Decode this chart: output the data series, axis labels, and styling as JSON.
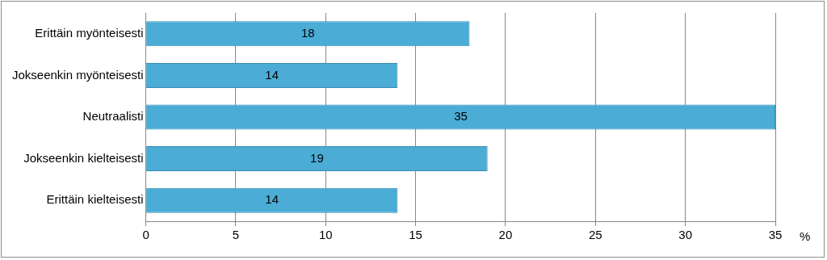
{
  "chart_data": {
    "type": "bar",
    "orientation": "horizontal",
    "categories": [
      "Erittäin myönteisesti",
      "Jokseenkin myönteisesti",
      "Neutraalisti",
      "Jokseenkin kielteisesti",
      "Erittäin kielteisesti"
    ],
    "values": [
      18,
      14,
      35,
      19,
      14
    ],
    "color": "#4bacd6",
    "xlabel": "%",
    "xlim": [
      0,
      35
    ],
    "xticks": [
      0,
      5,
      10,
      15,
      20,
      25,
      30,
      35
    ],
    "grid": "x",
    "data_labels": true,
    "legend": false
  }
}
